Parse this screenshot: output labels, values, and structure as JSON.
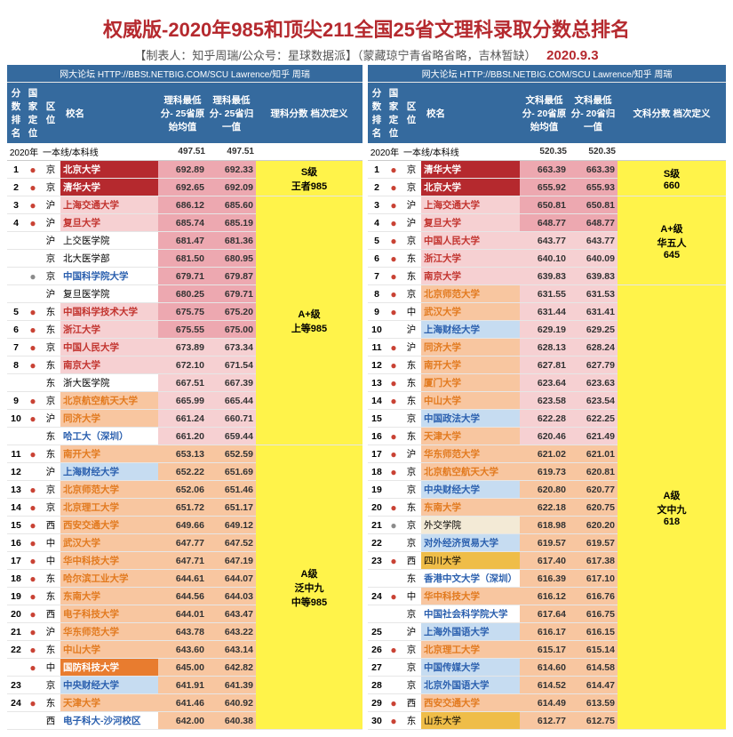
{
  "title": "权威版-2020年985和顶尖211全国25省文理科录取分数总排名",
  "subtitle_left": "【制表人：知乎周瑞/公众号：星球数据派】（蒙藏琼宁青省略省略，吉林暂缺）",
  "subtitle_date": "2020.9.3",
  "source_bar": "网大论坛 HTTP://BBSt.NETBIG.COM/SCU Lawrence/知乎 周瑞",
  "left": {
    "headers": {
      "c1": "分数排名",
      "c2": "国家定位",
      "c3": "区位",
      "c4": "校名",
      "c5": "理科最低分- 25省原始均值",
      "c6": "理科最低分- 25省归一值",
      "c7": "理科分数 档次定义"
    },
    "subhdr": {
      "year": "2020年",
      "line": "一本线/本科线",
      "v1": "497.51",
      "v2": "497.51"
    },
    "rows": [
      {
        "r": "1",
        "dot": "●",
        "dc": "dot-red",
        "reg": "京",
        "n": "北京大学",
        "nc": "txt-wht",
        "bg": "bg-dred",
        "v1": "692.89",
        "v2": "692.33",
        "vbg": "bg-pink"
      },
      {
        "r": "2",
        "dot": "●",
        "dc": "dot-red",
        "reg": "京",
        "n": "清华大学",
        "nc": "txt-wht",
        "bg": "bg-dred",
        "v1": "692.65",
        "v2": "692.09",
        "vbg": "bg-pink"
      },
      {
        "r": "3",
        "dot": "●",
        "dc": "dot-red",
        "reg": "沪",
        "n": "上海交通大学",
        "nc": "txt-red",
        "bg": "bg-lpink",
        "v1": "686.12",
        "v2": "685.60",
        "vbg": "bg-pink"
      },
      {
        "r": "4",
        "dot": "●",
        "dc": "dot-red",
        "reg": "沪",
        "n": "复旦大学",
        "nc": "txt-red",
        "bg": "bg-lpink",
        "v1": "685.74",
        "v2": "685.19",
        "vbg": "bg-pink"
      },
      {
        "r": "",
        "dot": "",
        "dc": "",
        "reg": "沪",
        "n": "上交医学院",
        "nc": "",
        "bg": "",
        "v1": "681.47",
        "v2": "681.36",
        "vbg": "bg-pink"
      },
      {
        "r": "",
        "dot": "",
        "dc": "",
        "reg": "京",
        "n": "北大医学部",
        "nc": "",
        "bg": "",
        "v1": "681.50",
        "v2": "680.95",
        "vbg": "bg-pink"
      },
      {
        "r": "",
        "dot": "●",
        "dc": "dot-gray",
        "reg": "京",
        "n": "中国科学院大学",
        "nc": "txt-blue",
        "bg": "",
        "v1": "679.71",
        "v2": "679.87",
        "vbg": "bg-pink"
      },
      {
        "r": "",
        "dot": "",
        "dc": "",
        "reg": "沪",
        "n": "复旦医学院",
        "nc": "",
        "bg": "",
        "v1": "680.25",
        "v2": "679.71",
        "vbg": "bg-pink"
      },
      {
        "r": "5",
        "dot": "●",
        "dc": "dot-red",
        "reg": "东",
        "n": "中国科学技术大学",
        "nc": "txt-red",
        "bg": "bg-lpink",
        "v1": "675.75",
        "v2": "675.20",
        "vbg": "bg-pink"
      },
      {
        "r": "6",
        "dot": "●",
        "dc": "dot-red",
        "reg": "东",
        "n": "浙江大学",
        "nc": "txt-red",
        "bg": "bg-lpink",
        "v1": "675.55",
        "v2": "675.00",
        "vbg": "bg-pink"
      },
      {
        "r": "7",
        "dot": "●",
        "dc": "dot-red",
        "reg": "京",
        "n": "中国人民大学",
        "nc": "txt-red",
        "bg": "bg-lpink",
        "v1": "673.89",
        "v2": "673.34",
        "vbg": "bg-lpink"
      },
      {
        "r": "8",
        "dot": "●",
        "dc": "dot-red",
        "reg": "东",
        "n": "南京大学",
        "nc": "txt-red",
        "bg": "bg-lpink",
        "v1": "672.10",
        "v2": "671.54",
        "vbg": "bg-lpink"
      },
      {
        "r": "",
        "dot": "",
        "dc": "",
        "reg": "东",
        "n": "浙大医学院",
        "nc": "",
        "bg": "",
        "v1": "667.51",
        "v2": "667.39",
        "vbg": "bg-lpink"
      },
      {
        "r": "9",
        "dot": "●",
        "dc": "dot-red",
        "reg": "京",
        "n": "北京航空航天大学",
        "nc": "txt-ora",
        "bg": "bg-peach",
        "v1": "665.99",
        "v2": "665.44",
        "vbg": "bg-lpink"
      },
      {
        "r": "10",
        "dot": "●",
        "dc": "dot-red",
        "reg": "沪",
        "n": "同济大学",
        "nc": "txt-ora",
        "bg": "bg-peach",
        "v1": "661.24",
        "v2": "660.71",
        "vbg": "bg-lpink"
      },
      {
        "r": "",
        "dot": "",
        "dc": "",
        "reg": "东",
        "n": "哈工大（深圳）",
        "nc": "txt-blue",
        "bg": "",
        "v1": "661.20",
        "v2": "659.44",
        "vbg": "bg-lpink"
      },
      {
        "r": "11",
        "dot": "●",
        "dc": "dot-red",
        "reg": "东",
        "n": "南开大学",
        "nc": "txt-ora",
        "bg": "bg-peach",
        "v1": "653.13",
        "v2": "652.59",
        "vbg": "bg-peach"
      },
      {
        "r": "12",
        "dot": "",
        "dc": "",
        "reg": "沪",
        "n": "上海财经大学",
        "nc": "txt-blue",
        "bg": "bg-blue",
        "v1": "652.22",
        "v2": "651.69",
        "vbg": "bg-peach"
      },
      {
        "r": "13",
        "dot": "●",
        "dc": "dot-red",
        "reg": "京",
        "n": "北京师范大学",
        "nc": "txt-ora",
        "bg": "bg-peach",
        "v1": "652.06",
        "v2": "651.46",
        "vbg": "bg-peach"
      },
      {
        "r": "14",
        "dot": "●",
        "dc": "dot-red",
        "reg": "京",
        "n": "北京理工大学",
        "nc": "txt-ora",
        "bg": "bg-peach",
        "v1": "651.72",
        "v2": "651.17",
        "vbg": "bg-peach"
      },
      {
        "r": "15",
        "dot": "●",
        "dc": "dot-red",
        "reg": "西",
        "n": "西安交通大学",
        "nc": "txt-ora",
        "bg": "bg-peach",
        "v1": "649.66",
        "v2": "649.12",
        "vbg": "bg-peach"
      },
      {
        "r": "16",
        "dot": "●",
        "dc": "dot-red",
        "reg": "中",
        "n": "武汉大学",
        "nc": "txt-ora",
        "bg": "bg-peach",
        "v1": "647.77",
        "v2": "647.52",
        "vbg": "bg-peach"
      },
      {
        "r": "17",
        "dot": "●",
        "dc": "dot-red",
        "reg": "中",
        "n": "华中科技大学",
        "nc": "txt-ora",
        "bg": "bg-peach",
        "v1": "647.71",
        "v2": "647.19",
        "vbg": "bg-peach"
      },
      {
        "r": "18",
        "dot": "●",
        "dc": "dot-red",
        "reg": "东",
        "n": "哈尔滨工业大学",
        "nc": "txt-ora",
        "bg": "bg-peach",
        "v1": "644.61",
        "v2": "644.07",
        "vbg": "bg-peach"
      },
      {
        "r": "19",
        "dot": "●",
        "dc": "dot-red",
        "reg": "东",
        "n": "东南大学",
        "nc": "txt-ora",
        "bg": "bg-peach",
        "v1": "644.56",
        "v2": "644.03",
        "vbg": "bg-peach"
      },
      {
        "r": "20",
        "dot": "●",
        "dc": "dot-red",
        "reg": "西",
        "n": "电子科技大学",
        "nc": "txt-ora",
        "bg": "bg-peach",
        "v1": "644.01",
        "v2": "643.47",
        "vbg": "bg-peach"
      },
      {
        "r": "21",
        "dot": "●",
        "dc": "dot-red",
        "reg": "沪",
        "n": "华东师范大学",
        "nc": "txt-ora",
        "bg": "bg-peach",
        "v1": "643.78",
        "v2": "643.22",
        "vbg": "bg-peach"
      },
      {
        "r": "22",
        "dot": "●",
        "dc": "dot-red",
        "reg": "东",
        "n": "中山大学",
        "nc": "txt-ora",
        "bg": "bg-peach",
        "v1": "643.60",
        "v2": "643.14",
        "vbg": "bg-peach"
      },
      {
        "r": "",
        "dot": "●",
        "dc": "dot-red",
        "reg": "中",
        "n": "国防科技大学",
        "nc": "txt-wht",
        "bg": "bg-ora",
        "v1": "645.00",
        "v2": "642.82",
        "vbg": "bg-peach"
      },
      {
        "r": "23",
        "dot": "",
        "dc": "",
        "reg": "京",
        "n": "中央财经大学",
        "nc": "txt-blue",
        "bg": "bg-blue",
        "v1": "641.91",
        "v2": "641.39",
        "vbg": "bg-peach"
      },
      {
        "r": "24",
        "dot": "●",
        "dc": "dot-red",
        "reg": "东",
        "n": "天津大学",
        "nc": "txt-ora",
        "bg": "bg-peach",
        "v1": "641.46",
        "v2": "640.92",
        "vbg": "bg-peach"
      },
      {
        "r": "",
        "dot": "",
        "dc": "",
        "reg": "西",
        "n": "电子科大-沙河校区",
        "nc": "txt-blue",
        "bg": "",
        "v1": "642.00",
        "v2": "640.38",
        "vbg": "bg-peach"
      }
    ],
    "tiers": [
      {
        "txt": "S级 王者985",
        "rows": 2,
        "bg": "bg-yellow"
      },
      {
        "txt": "A+级 上等985",
        "rows": 14,
        "bg": "bg-yellow"
      },
      {
        "txt": "A级 泛中九 中等985",
        "rows": 16,
        "bg": "bg-yellow"
      }
    ]
  },
  "right": {
    "headers": {
      "c1": "分数排名",
      "c2": "国家定位",
      "c3": "区位",
      "c4": "校名",
      "c5": "文科最低分- 20省原始均值",
      "c6": "文科最低分- 20省归一值",
      "c7": "文科分数 档次定义"
    },
    "subhdr": {
      "year": "2020年",
      "line": "一本线/本科线",
      "v1": "520.35",
      "v2": "520.35"
    },
    "rows": [
      {
        "r": "1",
        "dot": "●",
        "dc": "dot-red",
        "reg": "京",
        "n": "清华大学",
        "nc": "txt-wht",
        "bg": "bg-dred",
        "v1": "663.39",
        "v2": "663.39",
        "vbg": "bg-pink"
      },
      {
        "r": "2",
        "dot": "●",
        "dc": "dot-red",
        "reg": "京",
        "n": "北京大学",
        "nc": "txt-wht",
        "bg": "bg-dred",
        "v1": "655.92",
        "v2": "655.93",
        "vbg": "bg-pink"
      },
      {
        "r": "3",
        "dot": "●",
        "dc": "dot-red",
        "reg": "沪",
        "n": "上海交通大学",
        "nc": "txt-red",
        "bg": "bg-lpink",
        "v1": "650.81",
        "v2": "650.81",
        "vbg": "bg-pink"
      },
      {
        "r": "4",
        "dot": "●",
        "dc": "dot-red",
        "reg": "沪",
        "n": "复旦大学",
        "nc": "txt-red",
        "bg": "bg-lpink",
        "v1": "648.77",
        "v2": "648.77",
        "vbg": "bg-pink"
      },
      {
        "r": "5",
        "dot": "●",
        "dc": "dot-red",
        "reg": "京",
        "n": "中国人民大学",
        "nc": "txt-red",
        "bg": "bg-lpink",
        "v1": "643.77",
        "v2": "643.77",
        "vbg": "bg-lpink"
      },
      {
        "r": "6",
        "dot": "●",
        "dc": "dot-red",
        "reg": "东",
        "n": "浙江大学",
        "nc": "txt-red",
        "bg": "bg-lpink",
        "v1": "640.10",
        "v2": "640.09",
        "vbg": "bg-lpink"
      },
      {
        "r": "7",
        "dot": "●",
        "dc": "dot-red",
        "reg": "东",
        "n": "南京大学",
        "nc": "txt-red",
        "bg": "bg-lpink",
        "v1": "639.83",
        "v2": "639.83",
        "vbg": "bg-lpink"
      },
      {
        "r": "8",
        "dot": "●",
        "dc": "dot-red",
        "reg": "京",
        "n": "北京师范大学",
        "nc": "txt-ora",
        "bg": "bg-peach",
        "v1": "631.55",
        "v2": "631.53",
        "vbg": "bg-lpink"
      },
      {
        "r": "9",
        "dot": "●",
        "dc": "dot-red",
        "reg": "中",
        "n": "武汉大学",
        "nc": "txt-ora",
        "bg": "bg-peach",
        "v1": "631.44",
        "v2": "631.41",
        "vbg": "bg-lpink"
      },
      {
        "r": "10",
        "dot": "",
        "dc": "",
        "reg": "沪",
        "n": "上海财经大学",
        "nc": "txt-blue",
        "bg": "bg-blue",
        "v1": "629.19",
        "v2": "629.25",
        "vbg": "bg-lpink"
      },
      {
        "r": "11",
        "dot": "●",
        "dc": "dot-red",
        "reg": "沪",
        "n": "同济大学",
        "nc": "txt-ora",
        "bg": "bg-peach",
        "v1": "628.13",
        "v2": "628.24",
        "vbg": "bg-lpink"
      },
      {
        "r": "12",
        "dot": "●",
        "dc": "dot-red",
        "reg": "东",
        "n": "南开大学",
        "nc": "txt-ora",
        "bg": "bg-peach",
        "v1": "627.81",
        "v2": "627.79",
        "vbg": "bg-lpink"
      },
      {
        "r": "13",
        "dot": "●",
        "dc": "dot-red",
        "reg": "东",
        "n": "厦门大学",
        "nc": "txt-ora",
        "bg": "bg-peach",
        "v1": "623.64",
        "v2": "623.63",
        "vbg": "bg-lpink"
      },
      {
        "r": "14",
        "dot": "●",
        "dc": "dot-red",
        "reg": "东",
        "n": "中山大学",
        "nc": "txt-ora",
        "bg": "bg-peach",
        "v1": "623.58",
        "v2": "623.54",
        "vbg": "bg-lpink"
      },
      {
        "r": "15",
        "dot": "",
        "dc": "",
        "reg": "京",
        "n": "中国政法大学",
        "nc": "txt-blue",
        "bg": "bg-blue",
        "v1": "622.28",
        "v2": "622.25",
        "vbg": "bg-lpink"
      },
      {
        "r": "16",
        "dot": "●",
        "dc": "dot-red",
        "reg": "东",
        "n": "天津大学",
        "nc": "txt-ora",
        "bg": "bg-peach",
        "v1": "620.46",
        "v2": "621.49",
        "vbg": "bg-lpink"
      },
      {
        "r": "17",
        "dot": "●",
        "dc": "dot-red",
        "reg": "沪",
        "n": "华东师范大学",
        "nc": "txt-ora",
        "bg": "bg-peach",
        "v1": "621.02",
        "v2": "621.01",
        "vbg": "bg-peach"
      },
      {
        "r": "18",
        "dot": "●",
        "dc": "dot-red",
        "reg": "京",
        "n": "北京航空航天大学",
        "nc": "txt-ora",
        "bg": "bg-peach",
        "v1": "619.73",
        "v2": "620.81",
        "vbg": "bg-peach"
      },
      {
        "r": "19",
        "dot": "",
        "dc": "",
        "reg": "京",
        "n": "中央财经大学",
        "nc": "txt-blue",
        "bg": "bg-blue",
        "v1": "620.80",
        "v2": "620.77",
        "vbg": "bg-peach"
      },
      {
        "r": "20",
        "dot": "●",
        "dc": "dot-red",
        "reg": "东",
        "n": "东南大学",
        "nc": "txt-ora",
        "bg": "bg-peach",
        "v1": "622.18",
        "v2": "620.75",
        "vbg": "bg-peach"
      },
      {
        "r": "21",
        "dot": "●",
        "dc": "dot-gray",
        "reg": "京",
        "n": "外交学院",
        "nc": "",
        "bg": "bg-beige",
        "v1": "618.98",
        "v2": "620.20",
        "vbg": "bg-peach"
      },
      {
        "r": "22",
        "dot": "",
        "dc": "",
        "reg": "京",
        "n": "对外经济贸易大学",
        "nc": "txt-blue",
        "bg": "bg-blue",
        "v1": "619.57",
        "v2": "619.57",
        "vbg": "bg-peach"
      },
      {
        "r": "23",
        "dot": "●",
        "dc": "dot-red",
        "reg": "西",
        "n": "四川大学",
        "nc": "",
        "bg": "bg-gold",
        "v1": "617.40",
        "v2": "617.38",
        "vbg": "bg-peach"
      },
      {
        "r": "",
        "dot": "",
        "dc": "",
        "reg": "东",
        "n": "香港中文大学（深圳）",
        "nc": "txt-blue",
        "bg": "",
        "v1": "616.39",
        "v2": "617.10",
        "vbg": "bg-peach"
      },
      {
        "r": "24",
        "dot": "●",
        "dc": "dot-red",
        "reg": "中",
        "n": "华中科技大学",
        "nc": "txt-ora",
        "bg": "bg-peach",
        "v1": "616.12",
        "v2": "616.76",
        "vbg": "bg-peach"
      },
      {
        "r": "",
        "dot": "",
        "dc": "",
        "reg": "京",
        "n": "中国社会科学院大学",
        "nc": "txt-blue",
        "bg": "",
        "v1": "617.64",
        "v2": "616.75",
        "vbg": "bg-peach"
      },
      {
        "r": "25",
        "dot": "",
        "dc": "",
        "reg": "沪",
        "n": "上海外国语大学",
        "nc": "txt-blue",
        "bg": "bg-blue",
        "v1": "616.17",
        "v2": "616.15",
        "vbg": "bg-peach"
      },
      {
        "r": "26",
        "dot": "●",
        "dc": "dot-red",
        "reg": "京",
        "n": "北京理工大学",
        "nc": "txt-ora",
        "bg": "bg-peach",
        "v1": "615.17",
        "v2": "615.14",
        "vbg": "bg-peach"
      },
      {
        "r": "27",
        "dot": "",
        "dc": "",
        "reg": "京",
        "n": "中国传媒大学",
        "nc": "txt-blue",
        "bg": "bg-blue",
        "v1": "614.60",
        "v2": "614.58",
        "vbg": "bg-peach"
      },
      {
        "r": "28",
        "dot": "",
        "dc": "",
        "reg": "京",
        "n": "北京外国语大学",
        "nc": "txt-blue",
        "bg": "bg-blue",
        "v1": "614.52",
        "v2": "614.47",
        "vbg": "bg-peach"
      },
      {
        "r": "29",
        "dot": "●",
        "dc": "dot-red",
        "reg": "西",
        "n": "西安交通大学",
        "nc": "txt-ora",
        "bg": "bg-peach",
        "v1": "614.49",
        "v2": "613.59",
        "vbg": "bg-peach"
      },
      {
        "r": "30",
        "dot": "●",
        "dc": "dot-red",
        "reg": "东",
        "n": "山东大学",
        "nc": "",
        "bg": "bg-gold",
        "v1": "612.77",
        "v2": "612.75",
        "vbg": "bg-peach"
      }
    ],
    "tiers": [
      {
        "txt": "S级 660",
        "rows": 2,
        "bg": "bg-yellow"
      },
      {
        "txt": "A+级 华五人 645",
        "rows": 5,
        "bg": "bg-yellow"
      },
      {
        "txt": "A级 文中九 618",
        "rows": 25,
        "bg": "bg-yellow"
      }
    ]
  }
}
